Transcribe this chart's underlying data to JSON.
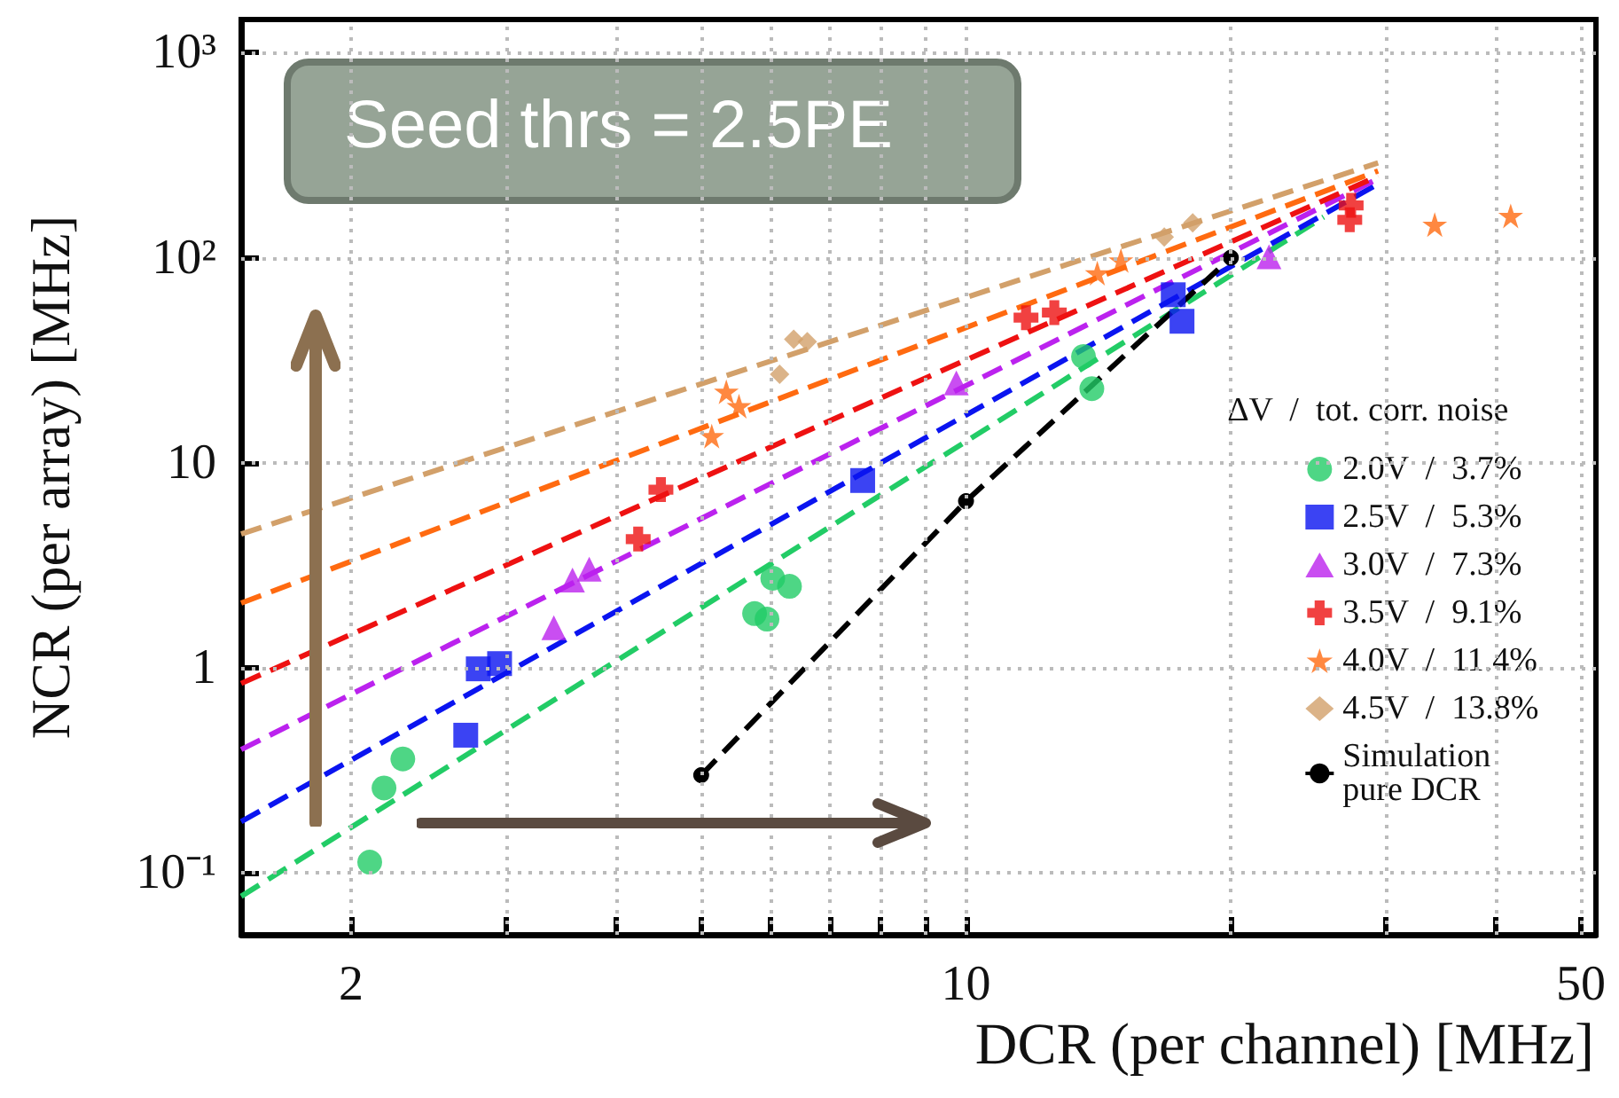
{
  "chart_data": {
    "type": "scatter",
    "xlabel": "DCR (per channel) [MHz]",
    "ylabel": "NCR (per array) [MHz]",
    "annotations": [
      "Seed thrs = 2.5PE"
    ],
    "log": "xy",
    "xlim": [
      1.5,
      52
    ],
    "ylim": [
      0.05,
      1450
    ],
    "xticks": [
      2,
      {
        "value": 3,
        "label": null
      },
      {
        "value": 4,
        "label": null
      },
      {
        "value": 5,
        "label": null
      },
      {
        "value": 6,
        "label": null
      },
      {
        "value": 7,
        "label": null
      },
      {
        "value": 8,
        "label": null
      },
      {
        "value": 9,
        "label": null
      },
      10,
      {
        "value": 20,
        "label": null
      },
      {
        "value": 30,
        "label": null
      },
      {
        "value": 40,
        "label": null
      },
      50
    ],
    "yticks": [
      {
        "value": 0.1,
        "label": "10⁻¹"
      },
      1,
      10,
      {
        "value": 100,
        "label": "10²"
      },
      {
        "value": 1000,
        "label": "10³"
      }
    ],
    "grid": true,
    "legend": "bottom right",
    "legend_title": "ΔV  /  tot. corr. noise",
    "series": [
      {
        "type": "line",
        "line_style": "dashed",
        "marker": "none",
        "color": "#22cc66",
        "x": [
          1.5,
          25.5
        ],
        "values": [
          0.077,
          158
        ]
      },
      {
        "type": "line",
        "line_style": "dashed",
        "marker": "none",
        "color": "#0a14f0",
        "x": [
          1.5,
          29.4
        ],
        "values": [
          0.178,
          229
        ]
      },
      {
        "type": "line",
        "line_style": "dashed",
        "marker": "none",
        "color": "#bb22ee",
        "x": [
          1.5,
          29.4
        ],
        "values": [
          0.4,
          243
        ]
      },
      {
        "type": "line",
        "line_style": "dashed",
        "marker": "none",
        "color": "#ee1111",
        "x": [
          1.5,
          29.4
        ],
        "values": [
          0.84,
          250
        ]
      },
      {
        "type": "line",
        "line_style": "dashed",
        "marker": "none",
        "color": "#ff6a10",
        "x": [
          1.5,
          29.4
        ],
        "values": [
          2.07,
          265
        ]
      },
      {
        "type": "line",
        "line_style": "dashed",
        "marker": "none",
        "color": "#d2a06a",
        "x": [
          1.5,
          29.4
        ],
        "values": [
          4.5,
          290
        ]
      },
      {
        "name": "2.0V  /  3.7%",
        "marker": "circle",
        "color": "#22cc66",
        "x": [
          2.1,
          2.18,
          2.29,
          5.75,
          5.94,
          6.03,
          6.3,
          13.6,
          13.9
        ],
        "values": [
          0.113,
          0.26,
          0.36,
          1.84,
          1.73,
          2.74,
          2.5,
          33,
          23
        ]
      },
      {
        "name": "2.5V  /  5.3%",
        "marker": "square",
        "color": "#0a14f0",
        "x": [
          2.7,
          2.79,
          2.95,
          7.63,
          17.2,
          17.6
        ],
        "values": [
          0.47,
          0.99,
          1.05,
          8.2,
          66,
          49
        ]
      },
      {
        "name": "3.0V  /  7.3%",
        "marker": "triangle",
        "color": "#bb22ee",
        "x": [
          3.4,
          3.57,
          3.73,
          9.75,
          22.1
        ],
        "values": [
          1.57,
          2.68,
          3.03,
          24.5,
          101
        ]
      },
      {
        "name": "3.5V  /  9.1%",
        "marker": "cross",
        "color": "#ee1111",
        "x": [
          4.24,
          4.5,
          11.7,
          12.6,
          27.4,
          27.3
        ],
        "values": [
          4.25,
          7.4,
          51,
          54,
          180,
          153
        ]
      },
      {
        "name": "4.0V  /  11.4%",
        "marker": "star",
        "color": "#ff6a10",
        "x": [
          5.14,
          5.34,
          5.52,
          14.1,
          15,
          34.1,
          41.6
        ],
        "values": [
          13.5,
          22.2,
          18.9,
          84,
          97,
          145,
          160
        ]
      },
      {
        "name": "4.5V  /  13.8%",
        "marker": "diamond",
        "color": "#d2a06a",
        "x": [
          6.14,
          6.37,
          6.6,
          16.8,
          18.1
        ],
        "values": [
          27,
          40,
          39,
          126,
          148
        ]
      },
      {
        "name": "Simulation\npure DCR",
        "type": "line",
        "line_style": "dashed",
        "marker": "circle",
        "color": "#000000",
        "x": [
          5,
          10,
          20
        ],
        "values": [
          0.3,
          6.5,
          100
        ]
      }
    ]
  }
}
